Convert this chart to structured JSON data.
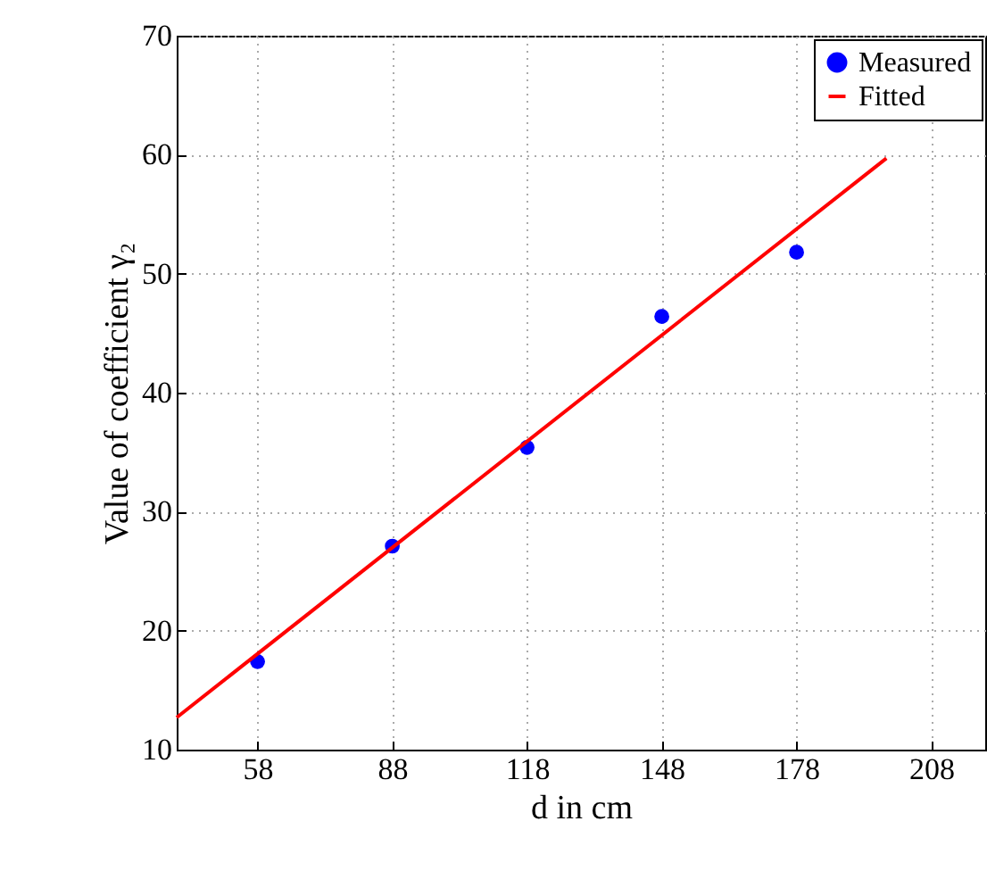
{
  "chart_data": {
    "type": "scatter",
    "xlabel": "d in cm",
    "ylabel": "Value of coefficient γ₂",
    "xlim": [
      40,
      220
    ],
    "ylim": [
      10,
      70
    ],
    "xticks": [
      58,
      88,
      118,
      148,
      178,
      208
    ],
    "yticks": [
      10,
      20,
      30,
      40,
      50,
      60,
      70
    ],
    "grid": true,
    "legend": "top right",
    "series": [
      {
        "name": "Measured",
        "marker": "circle",
        "color": "#0000ff",
        "x": [
          58,
          88,
          118,
          148,
          178
        ],
        "values": [
          17.4,
          27.1,
          35.4,
          46.4,
          51.8
        ]
      },
      {
        "name": "Fitted",
        "type": "line",
        "line_style": "solid",
        "color": "#ff0000",
        "x": [
          40,
          198
        ],
        "values": [
          12.7,
          59.7
        ]
      }
    ]
  }
}
